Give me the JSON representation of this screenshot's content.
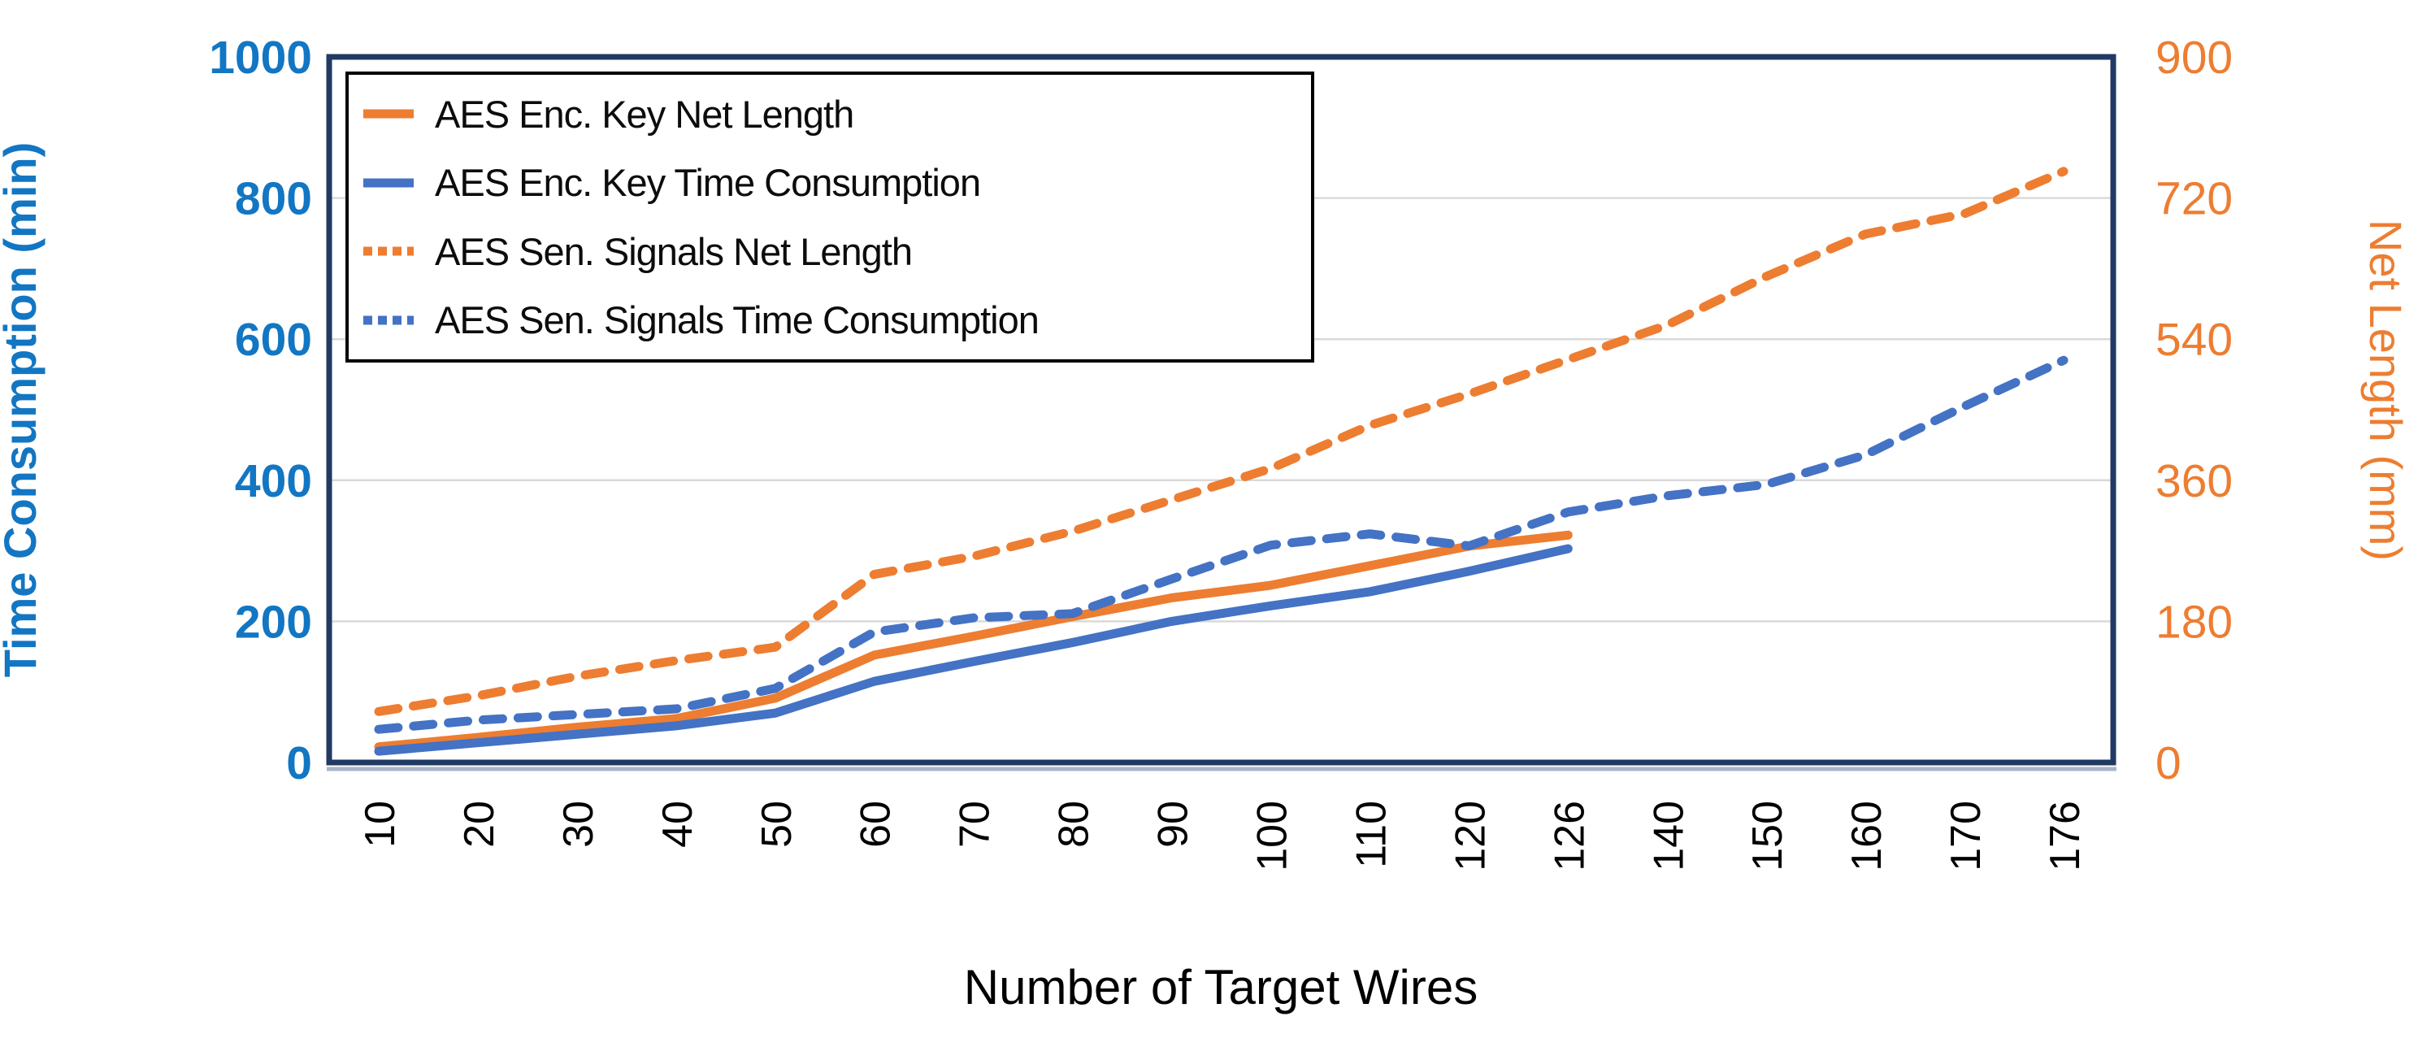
{
  "figure": {
    "x_title": "Number of Target Wires",
    "y_left_title": "Time Consumption (min)",
    "y_right_title": "Net Length (mm)"
  },
  "colors": {
    "orange_series": "#ED7D31",
    "blue_series": "#4472C4",
    "left_axis_text": "#1276C3",
    "right_axis_text": "#ED7D31",
    "x_axis_text": "#000000",
    "gridline": "#D9D9D9",
    "plot_border": "#203A63",
    "plot_border_shadow": "#AAB4C8",
    "legend_border": "#000000"
  },
  "chart_data": {
    "type": "line",
    "x_axis_type": "category",
    "grid": true,
    "legend_position": "top-left",
    "categories": [
      10,
      20,
      30,
      40,
      50,
      60,
      70,
      80,
      90,
      100,
      110,
      120,
      126,
      140,
      150,
      160,
      170,
      176
    ],
    "xlabel": "Number of Target Wires",
    "y_left": {
      "label": "Time Consumption (min)",
      "range": [
        0,
        1000
      ],
      "ticks": [
        0,
        200,
        400,
        600,
        800,
        1000
      ]
    },
    "y_right": {
      "label": "Net Length (mm)",
      "range": [
        0,
        900
      ],
      "ticks": [
        0,
        180,
        360,
        540,
        720,
        900
      ]
    },
    "series": [
      {
        "name": "AES Enc. Key Net Length",
        "axis": "right",
        "line": "solid",
        "color": "#ED7D31",
        "values": [
          20,
          32,
          45,
          56,
          82,
          137,
          161,
          186,
          210,
          226,
          251,
          276,
          290
        ]
      },
      {
        "name": "AES Enc. Key Time Consumption",
        "axis": "left",
        "line": "solid",
        "color": "#4472C4",
        "values": [
          16,
          28,
          40,
          52,
          70,
          115,
          143,
          170,
          200,
          222,
          242,
          271,
          303
        ]
      },
      {
        "name": "AES Sen. Signals Net Length",
        "axis": "right",
        "line": "dashed",
        "color": "#ED7D31",
        "values": [
          65,
          85,
          110,
          130,
          147,
          240,
          263,
          295,
          335,
          375,
          430,
          470,
          514,
          558,
          620,
          674,
          700,
          754
        ]
      },
      {
        "name": "AES Sen. Signals Time Consumption",
        "axis": "left",
        "line": "dashed",
        "color": "#4472C4",
        "values": [
          47,
          60,
          68,
          76,
          105,
          185,
          205,
          211,
          260,
          308,
          324,
          307,
          355,
          378,
          394,
          436,
          505,
          570
        ]
      }
    ]
  }
}
